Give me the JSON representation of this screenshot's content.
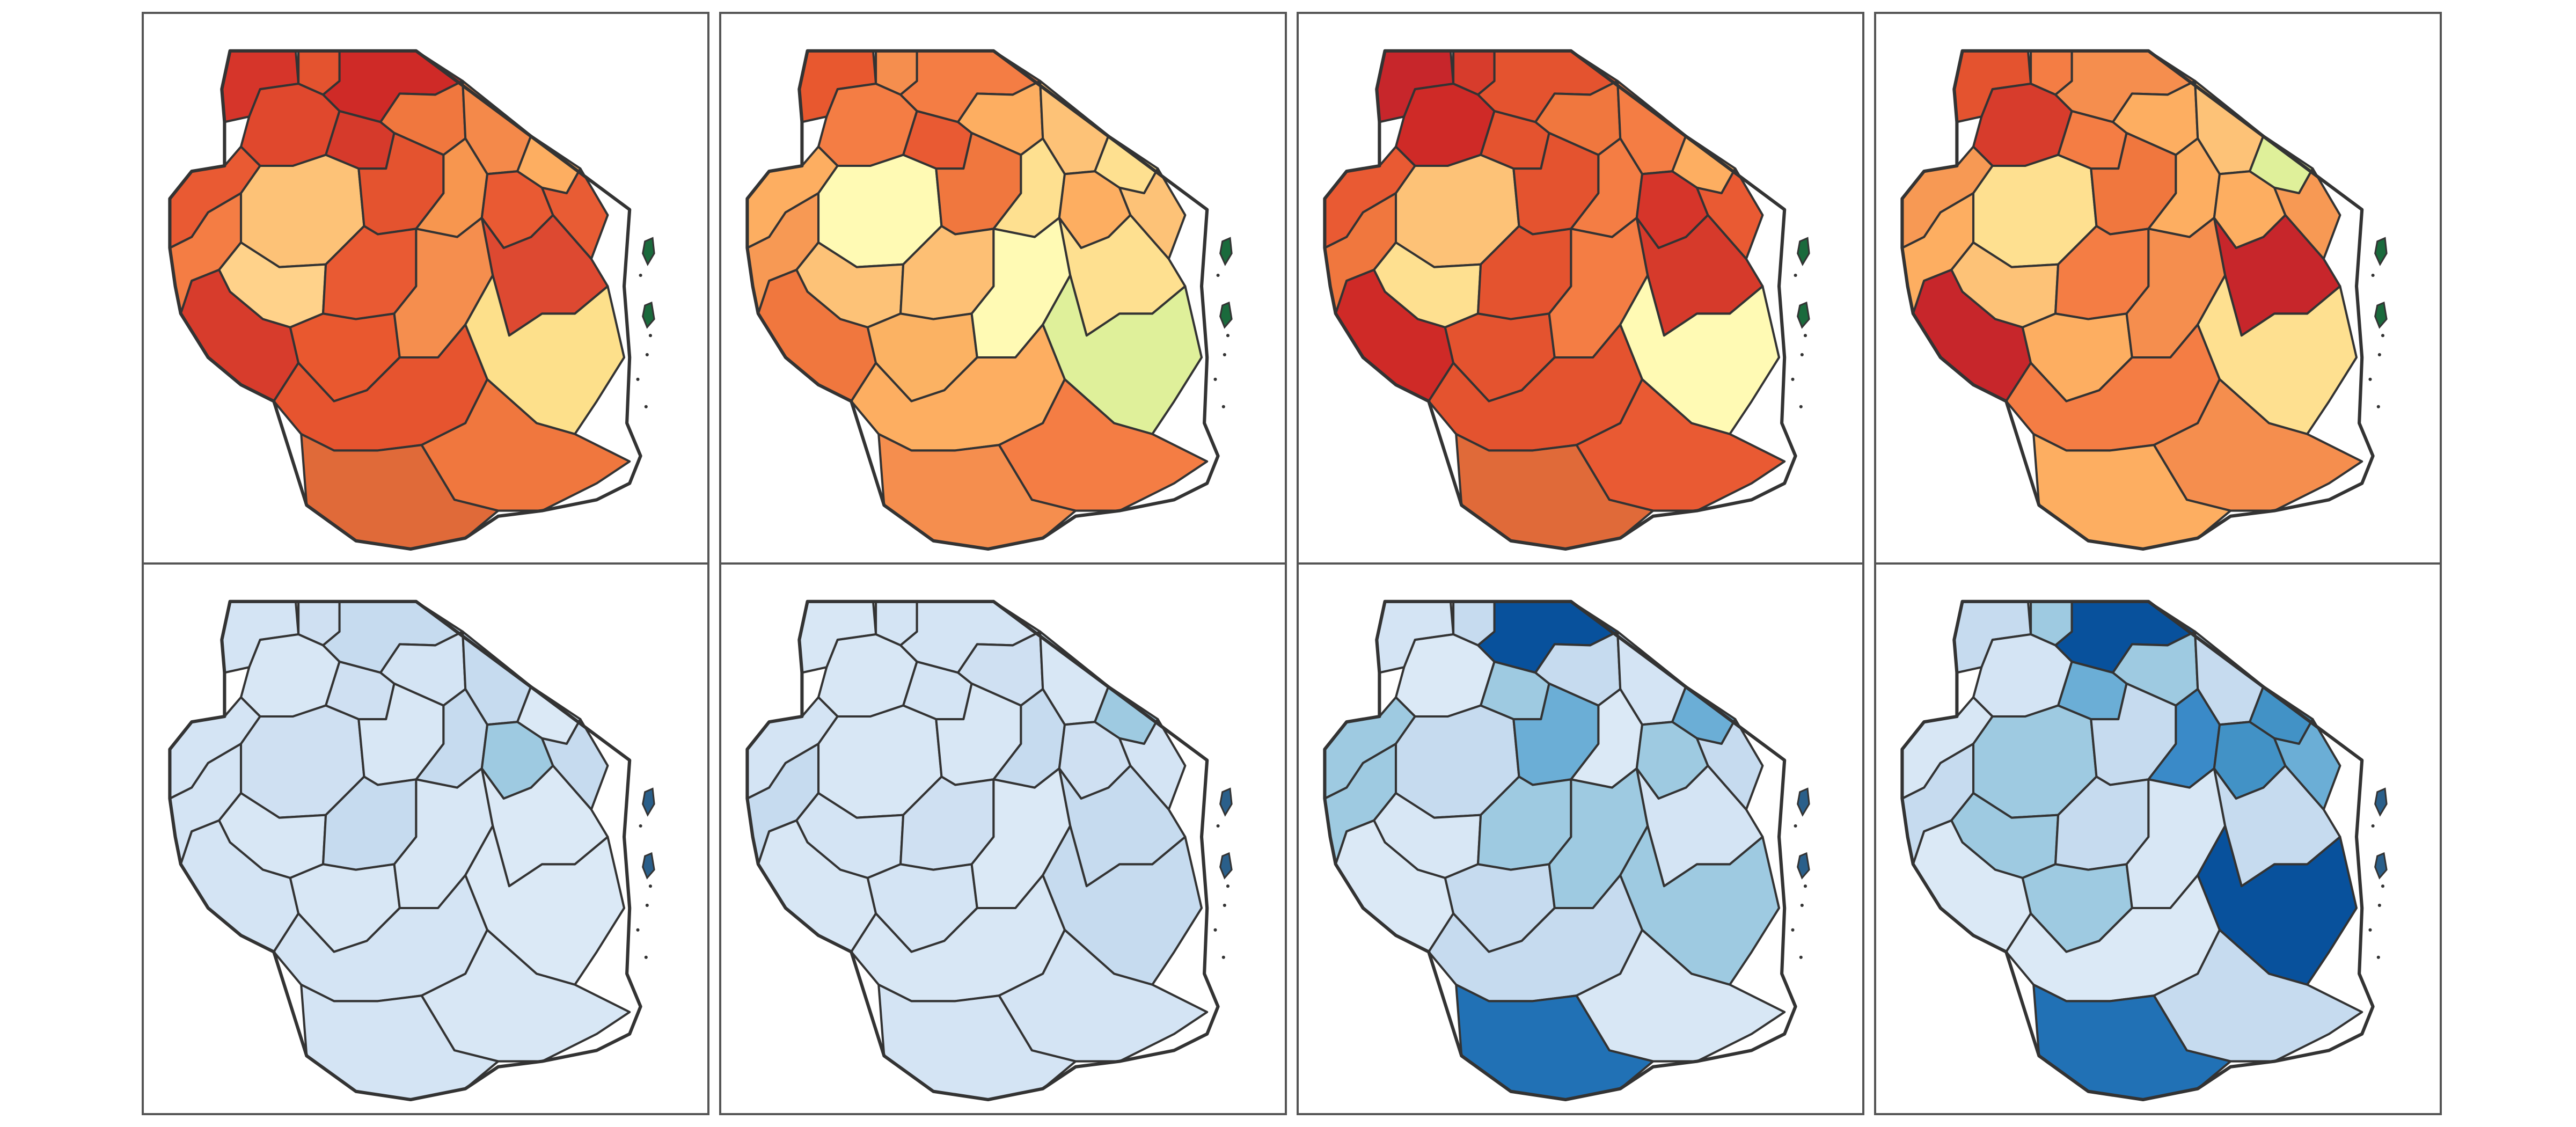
{
  "figure": {
    "layout": {
      "rows": 2,
      "columns": 4
    },
    "frame_color": "#555555",
    "border_color": "#333333",
    "background": "#ffffff",
    "panels": [
      {
        "id": "r1c1",
        "palette": "red-orange",
        "fills": [
          "#d6352a",
          "#e4532f",
          "#cf2a27",
          "#e0482d",
          "#d63a2b",
          "#f0773e",
          "#f4894a",
          "#fdae61",
          "#e95a33",
          "#fdc277",
          "#e4532f",
          "#f7964f",
          "#e95a33",
          "#e85c34",
          "#f47d44",
          "#ffd28a",
          "#e95a33",
          "#d73c2c",
          "#e9582f",
          "#f58e4e",
          "#dd4931",
          "#e6542f",
          "#fde08b",
          "#f0773e",
          "#1a6a3c",
          "#1a6a3c",
          "#e06a39"
        ]
      },
      {
        "id": "r1c2",
        "palette": "orange-yellow",
        "fills": [
          "#e8582f",
          "#f58e4e",
          "#f47d44",
          "#f47d44",
          "#e95a33",
          "#fdae61",
          "#fdc277",
          "#fee090",
          "#fdae61",
          "#fffab4",
          "#f0773e",
          "#fee090",
          "#fdae61",
          "#fdc277",
          "#f79954",
          "#fdc277",
          "#fdbf74",
          "#f0773e",
          "#fbb263",
          "#fffab4",
          "#fee090",
          "#fdae61",
          "#dff09a",
          "#f47d44",
          "#1a6a3c",
          "#1a6a3c",
          "#f58e4e"
        ]
      },
      {
        "id": "r1c3",
        "palette": "red-orange-fine",
        "fills": [
          "#c7262b",
          "#d73c2c",
          "#e4532f",
          "#cf2a27",
          "#e4532f",
          "#f0773e",
          "#f47d44",
          "#fdae61",
          "#e95a33",
          "#fdc277",
          "#e4532f",
          "#f47d44",
          "#d6352a",
          "#e95a33",
          "#f0773e",
          "#fee090",
          "#e4532f",
          "#cf2a27",
          "#e4532f",
          "#f47d44",
          "#d63a2b",
          "#e4532f",
          "#fffab4",
          "#e95a33",
          "#1a6a3c",
          "#1a6a3c",
          "#e06a39"
        ]
      },
      {
        "id": "r1c4",
        "palette": "orange-fine",
        "fills": [
          "#e4532f",
          "#f47d44",
          "#f58e4e",
          "#d73c2c",
          "#f47d44",
          "#fdae61",
          "#fdc277",
          "#dff09a",
          "#f79954",
          "#fee090",
          "#f0773e",
          "#fdae61",
          "#fdae61",
          "#f79954",
          "#fdae61",
          "#fdc277",
          "#f47d44",
          "#c7262b",
          "#fdae61",
          "#f58e4e",
          "#c7262b",
          "#f47d44",
          "#fee090",
          "#f58e4e",
          "#1a6a3c",
          "#1a6a3c",
          "#fdae61"
        ]
      },
      {
        "id": "r2c1",
        "palette": "blue-light",
        "fills": [
          "#d4e4f4",
          "#cfe0f2",
          "#c6dbef",
          "#d8e7f5",
          "#cfe0f2",
          "#d4e4f4",
          "#c6dbef",
          "#dbe9f6",
          "#d4e4f4",
          "#cfe0f2",
          "#d8e7f5",
          "#c6dbef",
          "#9ecae1",
          "#c6dbef",
          "#d4e4f4",
          "#d8e7f5",
          "#c6dbef",
          "#d4e4f4",
          "#d8e7f5",
          "#d8e7f5",
          "#dbe9f6",
          "#d4e4f4",
          "#dbe9f6",
          "#d8e7f5",
          "#2a5f8a",
          "#2a5f8a",
          "#d4e4f4"
        ]
      },
      {
        "id": "r2c2",
        "palette": "blue-light",
        "fills": [
          "#d8e7f5",
          "#d4e4f4",
          "#d4e4f4",
          "#d8e7f5",
          "#d4e4f4",
          "#cfe0f2",
          "#d8e7f5",
          "#9ecae1",
          "#d4e4f4",
          "#d8e7f5",
          "#d8e7f5",
          "#c6dbef",
          "#cfe0f2",
          "#d4e4f4",
          "#c6dbef",
          "#d4e4f4",
          "#cfe0f2",
          "#d8e7f5",
          "#d4e4f4",
          "#dbe9f6",
          "#c6dbef",
          "#d8e7f5",
          "#c6dbef",
          "#d4e4f4",
          "#2a5f8a",
          "#2a5f8a",
          "#d4e4f4"
        ]
      },
      {
        "id": "r2c3",
        "palette": "blue-fine",
        "fills": [
          "#d4e4f4",
          "#c6dbef",
          "#08519c",
          "#dbe9f6",
          "#9ecae1",
          "#c6dbef",
          "#d4e4f4",
          "#6baed6",
          "#9ecae1",
          "#c6dbef",
          "#6baed6",
          "#dbe9f6",
          "#9ecae1",
          "#c6dbef",
          "#9ecae1",
          "#d8e7f5",
          "#9ecae1",
          "#dbe9f6",
          "#c6dbef",
          "#9ecae1",
          "#d4e4f4",
          "#c6dbef",
          "#9ecae1",
          "#d8e7f5",
          "#2a5f8a",
          "#2a5f8a",
          "#2171b5"
        ]
      },
      {
        "id": "r2c4",
        "palette": "blue-fine",
        "fills": [
          "#c6dbef",
          "#9ecae1",
          "#08519c",
          "#d4e4f4",
          "#6baed6",
          "#9ecae1",
          "#c6dbef",
          "#4292c6",
          "#d8e7f5",
          "#9ecae1",
          "#c6dbef",
          "#3a8ac8",
          "#4292c6",
          "#6baed6",
          "#c6dbef",
          "#9ecae1",
          "#c6dbef",
          "#dbe9f6",
          "#9ecae1",
          "#d8e7f5",
          "#c6dbef",
          "#dbe9f6",
          "#08519c",
          "#c6dbef",
          "#2a5f8a",
          "#2a5f8a",
          "#2171b5"
        ]
      }
    ]
  }
}
